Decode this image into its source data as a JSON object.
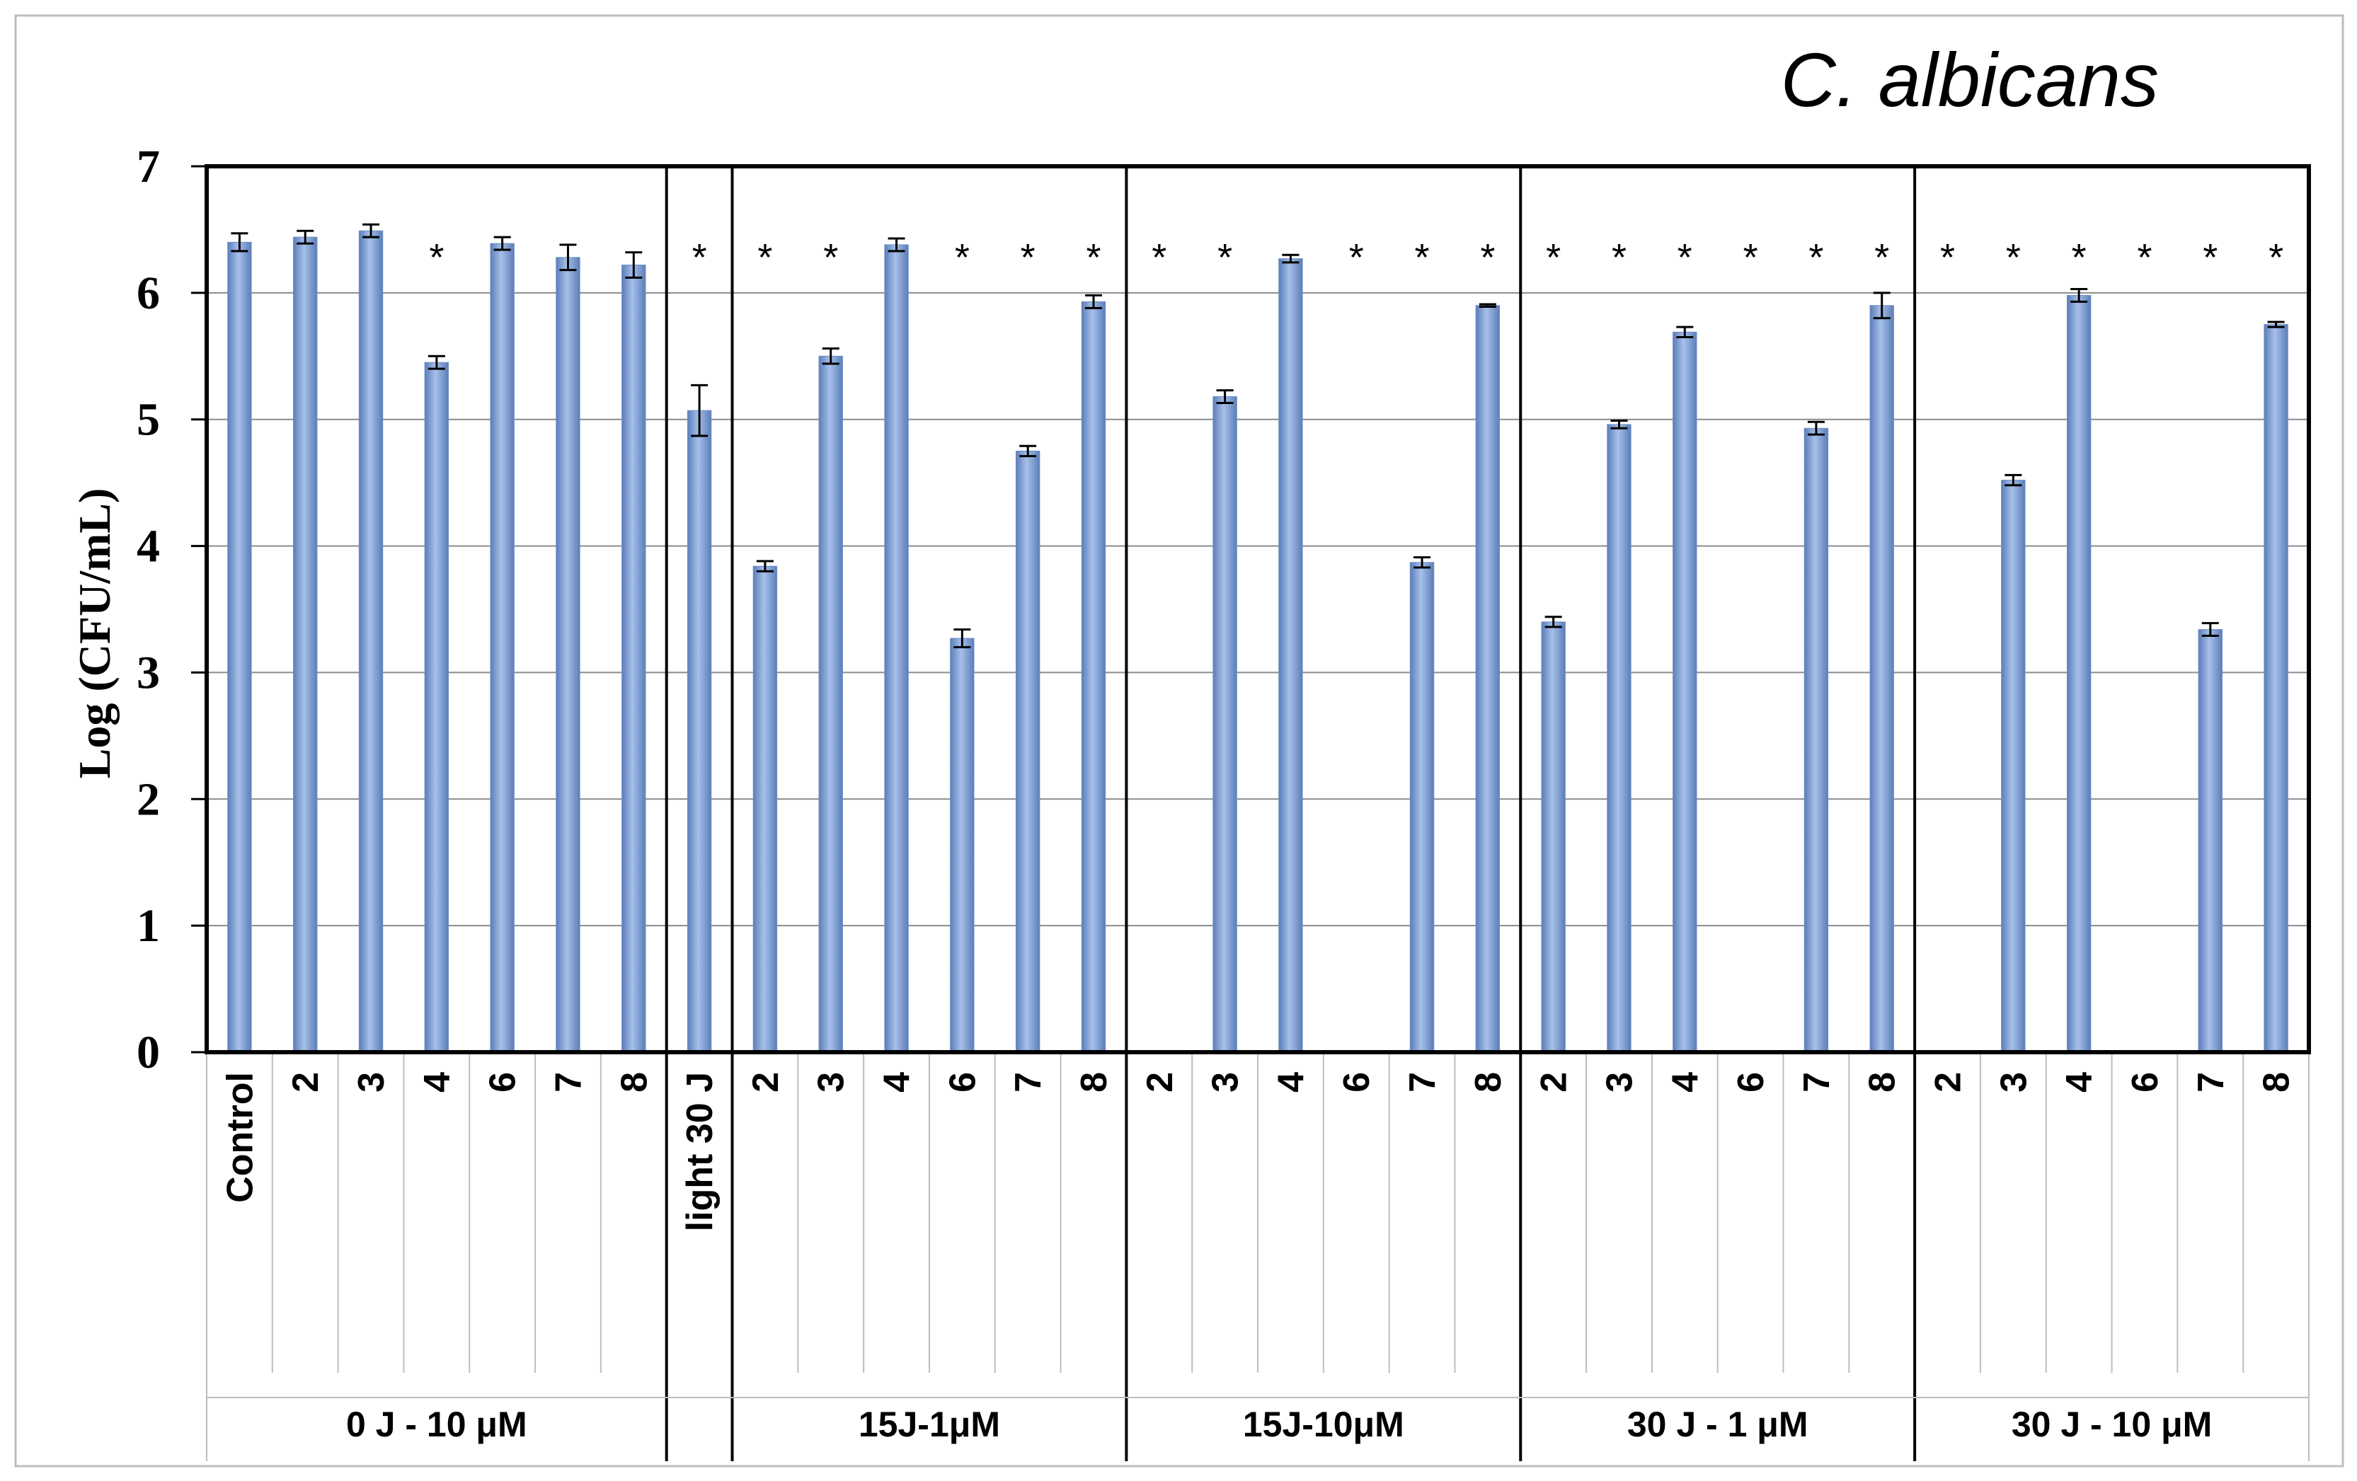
{
  "chart_data": {
    "type": "bar",
    "title": "C. albicans",
    "ylabel": "Log (CFU/mL)",
    "xlabel": "",
    "ylim": [
      0,
      7
    ],
    "yticks": [
      "0",
      "1",
      "2",
      "3",
      "4",
      "5",
      "6",
      "7"
    ],
    "grid": true,
    "bar_color": "#7f9fd3",
    "groups": [
      {
        "label": "0 J - 10 μM",
        "categories": [
          "Control",
          "2",
          "3",
          "4",
          "6",
          "7",
          "8"
        ],
        "values": [
          6.4,
          6.44,
          6.49,
          5.45,
          6.39,
          6.28,
          6.22
        ],
        "errors": [
          0.07,
          0.05,
          0.05,
          0.05,
          0.05,
          0.1,
          0.1
        ],
        "significant": [
          false,
          false,
          false,
          true,
          false,
          false,
          false
        ]
      },
      {
        "label": "",
        "categories": [
          "light 30 J"
        ],
        "values": [
          5.07
        ],
        "errors": [
          0.2
        ],
        "significant": [
          true
        ]
      },
      {
        "label": "15J-1μM",
        "categories": [
          "2",
          "3",
          "4",
          "6",
          "7",
          "8"
        ],
        "values": [
          3.84,
          5.5,
          6.38,
          3.27,
          4.75,
          5.93
        ],
        "errors": [
          0.04,
          0.06,
          0.05,
          0.07,
          0.04,
          0.05
        ],
        "significant": [
          true,
          true,
          false,
          true,
          true,
          true
        ]
      },
      {
        "label": "15J-10μM",
        "categories": [
          "2",
          "3",
          "4",
          "6",
          "7",
          "8"
        ],
        "values": [
          0,
          5.18,
          6.27,
          0,
          3.87,
          5.9
        ],
        "errors": [
          0,
          0.05,
          0.03,
          0,
          0.04,
          0.01
        ],
        "significant": [
          true,
          true,
          false,
          true,
          true,
          true
        ]
      },
      {
        "label": "30 J - 1 μM",
        "categories": [
          "2",
          "3",
          "4",
          "6",
          "7",
          "8"
        ],
        "values": [
          3.4,
          4.96,
          5.69,
          0,
          4.93,
          5.9
        ],
        "errors": [
          0.04,
          0.03,
          0.04,
          0,
          0.05,
          0.1
        ],
        "significant": [
          true,
          true,
          true,
          true,
          true,
          true
        ]
      },
      {
        "label": "30 J - 10 μM",
        "categories": [
          "2",
          "3",
          "4",
          "6",
          "7",
          "8"
        ],
        "values": [
          0,
          4.52,
          5.98,
          0,
          3.34,
          5.75
        ],
        "errors": [
          0,
          0.04,
          0.05,
          0,
          0.05,
          0.02
        ],
        "significant": [
          true,
          true,
          true,
          true,
          true,
          true
        ]
      }
    ],
    "significance_marker": "*"
  }
}
